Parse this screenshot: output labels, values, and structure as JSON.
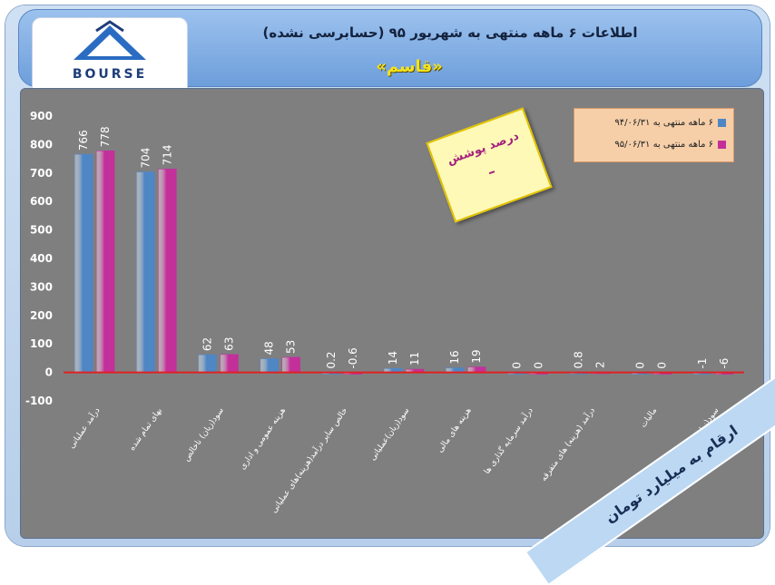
{
  "header": {
    "logo_text": "BOURSE",
    "title": "اطلاعات ۶ ماهه منتهی به شهریور ۹۵ (حسابرسی نشده)",
    "company": "«قاسم»"
  },
  "stamp": {
    "label": "درصد پوشش",
    "value": "–"
  },
  "ribbon": {
    "text": "ارقام به میلیارد تومان"
  },
  "colors": {
    "series1": "#4f86c4",
    "series2": "#c3309a",
    "zero_line": "#e02020",
    "plot_bg": "#7f7f80"
  },
  "chart_data": {
    "type": "bar",
    "categories": [
      "درآمد عملیاتی",
      "بهای تمام شده",
      "سود(زیان) ناخالص",
      "هزینه عمومی و اداری",
      "خالص سایر درآمد(هزینه)های عملیاتی",
      "سود(زیان)عملیاتی",
      "هزینه های مالی",
      "درآمد سرمایه گذاری ها",
      "درآمد (هزینه) های متفرقه",
      "مالیات",
      "سود(زیان) خالص"
    ],
    "series": [
      {
        "name": "۶ ماهه منتهی به ۹۴/۰۶/۳۱",
        "values": [
          766,
          704,
          62,
          48,
          0.2,
          14,
          16,
          0,
          0.8,
          0,
          -1
        ]
      },
      {
        "name": "۶ ماهه منتهی به ۹۵/۰۶/۳۱",
        "values": [
          778,
          714,
          63,
          53,
          -0.6,
          11,
          19,
          0,
          2,
          0,
          -6
        ]
      }
    ],
    "value_labels": [
      [
        "766",
        "704",
        "62",
        "48",
        "0.2",
        "14",
        "16",
        "0",
        "0.8",
        "0",
        "-1"
      ],
      [
        "778",
        "714",
        "63",
        "53",
        "-0.6",
        "11",
        "19",
        "0",
        "2",
        "0",
        "-6"
      ]
    ],
    "ylim": [
      -100,
      900
    ],
    "yticks": [
      "-100",
      "0",
      "100",
      "200",
      "300",
      "400",
      "500",
      "600",
      "700",
      "800",
      "900"
    ],
    "grid": false,
    "legend_position": "top-right"
  }
}
